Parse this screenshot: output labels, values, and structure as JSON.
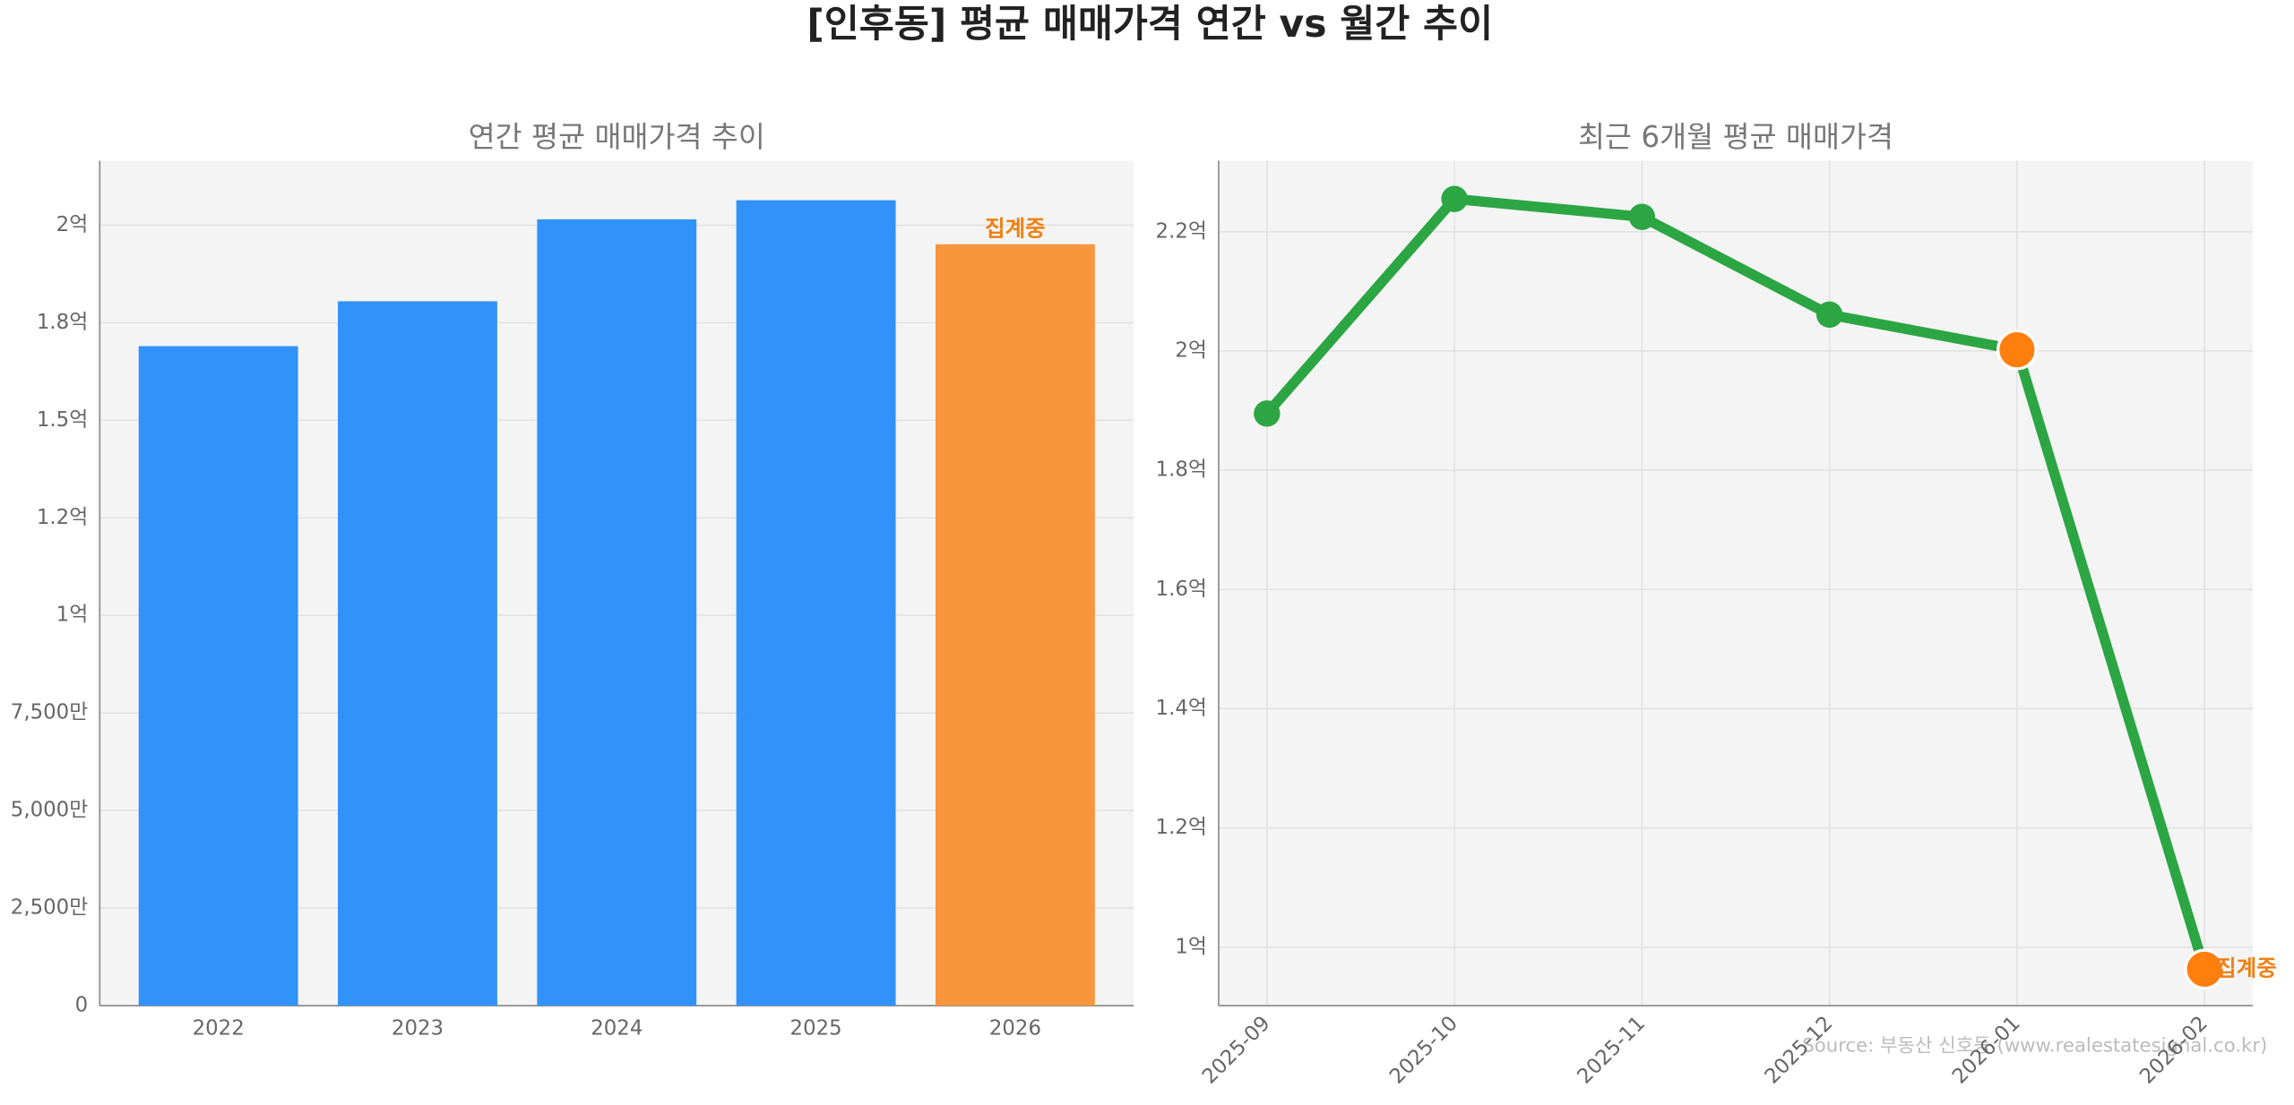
{
  "title": "[인후동] 평균 매매가격 연간 vs 월간 추이",
  "source": "Source: 부동산 신호등 (www.realestatesignal.co.kr)",
  "chart_data": [
    {
      "type": "bar",
      "title": "연간 평균 매매가격 추이",
      "categories": [
        "2022",
        "2023",
        "2024",
        "2025",
        "2026"
      ],
      "values": [
        169000000,
        180500000,
        201500000,
        206400000,
        195100000
      ],
      "colors": [
        "#3192fa",
        "#3192fa",
        "#3192fa",
        "#3192fa",
        "#f8963e"
      ],
      "annotation": "집계중",
      "annotation_color": "#f07f12",
      "ylim": [
        0,
        216500000
      ],
      "yticks": [
        0,
        {
          "value": 25000000,
          "label": "2,500만"
        },
        {
          "value": 50000000,
          "label": "5,000만"
        },
        {
          "value": 75000000,
          "label": "7,500만"
        },
        {
          "value": 100000000,
          "label": "1억"
        },
        {
          "value": 125000000,
          "label": "1.2억"
        },
        {
          "value": 150000000,
          "label": "1.5억"
        },
        {
          "value": 175000000,
          "label": "1.8억"
        },
        {
          "value": 200000000,
          "label": "2억"
        }
      ],
      "grid": true
    },
    {
      "type": "line",
      "title": "최근 6개월 평균 매매가격",
      "categories": [
        "2025-09",
        "2025-10",
        "2025-11",
        "2025-12",
        "2026-01",
        "2026-02"
      ],
      "series": [
        {
          "color": "#2ca543",
          "values": [
            189500000,
            225500000,
            222500000,
            206100000,
            200200000,
            96300000
          ]
        }
      ],
      "marker_colors": [
        "#2ca543",
        "#2ca543",
        "#2ca543",
        "#2ca543",
        "#ff7f0e",
        "#ff7f0e"
      ],
      "annotation": "집계중",
      "annotation_color": "#f07f12",
      "ylim": [
        90200000,
        231900000
      ],
      "yticks": [
        {
          "value": 100000000,
          "label": "1억"
        },
        {
          "value": 120000000,
          "label": "1.2억"
        },
        {
          "value": 140000000,
          "label": "1.4억"
        },
        {
          "value": 160000000,
          "label": "1.6억"
        },
        {
          "value": 180000000,
          "label": "1.8억"
        },
        {
          "value": 200000000,
          "label": "2억"
        },
        {
          "value": 220000000,
          "label": "2.2억"
        }
      ],
      "grid": true
    }
  ]
}
